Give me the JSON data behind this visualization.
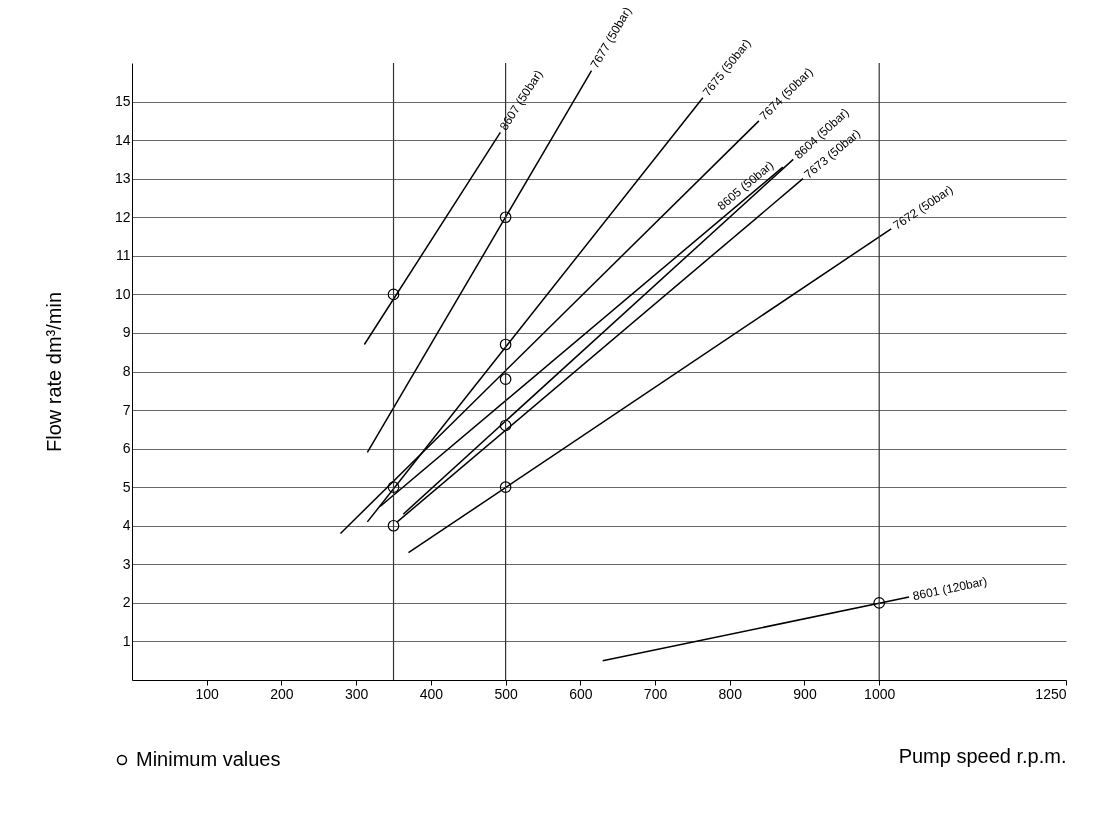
{
  "chart_data": {
    "type": "line",
    "xlabel": "Pump speed r.p.m.",
    "ylabel": "Flow rate dm³/min",
    "xlim": [
      0,
      1250
    ],
    "xticks": [
      100,
      200,
      300,
      400,
      500,
      600,
      700,
      800,
      900,
      1000,
      1250
    ],
    "ylim": [
      0,
      16
    ],
    "yticks": [
      1,
      2,
      3,
      4,
      5,
      6,
      7,
      8,
      9,
      10,
      11,
      12,
      13,
      14,
      15
    ],
    "grid": "y",
    "legend": "bottom left",
    "line_style": "solid",
    "ref_lines": [
      {
        "axis": "x",
        "value": 350
      },
      {
        "axis": "x",
        "value": 500
      },
      {
        "axis": "x",
        "value": 1000
      }
    ],
    "series": [
      {
        "name": "8607 (50bar)",
        "marker": "none",
        "color": "#000000",
        "x": [
          311,
          493
        ],
        "values": [
          8.7,
          14.2
        ]
      },
      {
        "name": "7677 (50bar)",
        "marker": "none",
        "color": "#000000",
        "x": [
          315,
          615
        ],
        "values": [
          5.9,
          15.8
        ]
      },
      {
        "name": "7675 (50bar)",
        "marker": "none",
        "color": "#000000",
        "x": [
          315,
          764
        ],
        "values": [
          4.1,
          15.1
        ]
      },
      {
        "name": "7674 (50bar)",
        "marker": "none",
        "color": "#000000",
        "x": [
          279,
          839
        ],
        "values": [
          3.8,
          14.5
        ]
      },
      {
        "name": "8605 (50bar)",
        "marker": "none",
        "color": "#000000",
        "x": [
          332,
          871
        ],
        "values": [
          4.5,
          13.3
        ]
      },
      {
        "name": "8604 (50bar)",
        "marker": "none",
        "color": "#000000",
        "x": [
          363,
          885
        ],
        "values": [
          4.3,
          13.5
        ]
      },
      {
        "name": "7673 (50bar)",
        "marker": "none",
        "color": "#000000",
        "x": [
          355,
          898
        ],
        "values": [
          4.1,
          13.0
        ]
      },
      {
        "name": "7672 (50bar)",
        "marker": "none",
        "color": "#000000",
        "x": [
          370,
          1016
        ],
        "values": [
          3.3,
          11.7
        ]
      },
      {
        "name": "8601 (120bar)",
        "marker": "none",
        "color": "#000000",
        "x": [
          630,
          1040
        ],
        "values": [
          0.5,
          2.15
        ]
      },
      {
        "name": "Minimum values",
        "type": "scatter",
        "marker": "circle",
        "color": "#000000",
        "x": [
          350,
          500,
          500,
          500,
          350,
          350,
          500,
          500,
          1000
        ],
        "values": [
          10,
          12,
          8.7,
          7.8,
          5,
          4,
          6.6,
          5,
          2
        ]
      }
    ]
  }
}
